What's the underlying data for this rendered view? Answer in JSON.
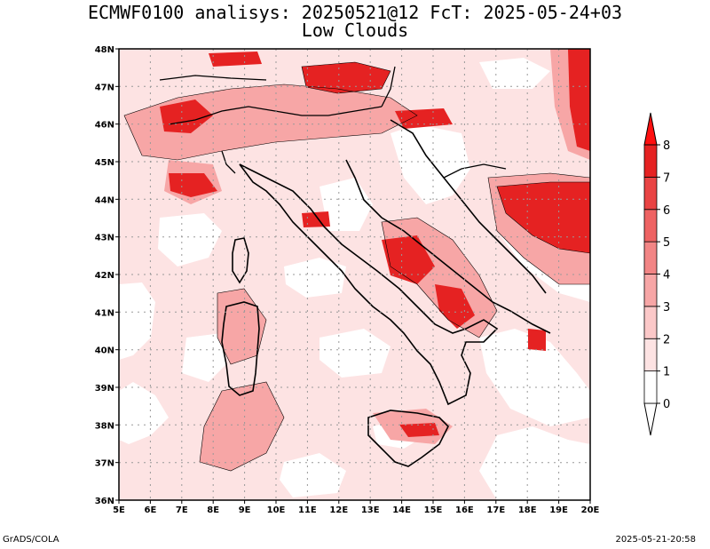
{
  "title": {
    "line1": "ECMWF0100 analisys: 20250521@12 FcT: 2025-05-24+03",
    "line2": "Low Clouds"
  },
  "credits": {
    "left": "GrADS/COLA",
    "right": "2025-05-21-20:58"
  },
  "map": {
    "lon_ticks": [
      "5E",
      "6E",
      "7E",
      "8E",
      "9E",
      "10E",
      "11E",
      "12E",
      "13E",
      "14E",
      "15E",
      "16E",
      "17E",
      "18E",
      "19E",
      "20E"
    ],
    "lat_ticks": [
      "48N",
      "47N",
      "46N",
      "45N",
      "44N",
      "43N",
      "42N",
      "41N",
      "40N",
      "39N",
      "38N",
      "37N",
      "36N"
    ],
    "lon_range": [
      5,
      20
    ],
    "lat_range": [
      36,
      48
    ],
    "grid": true,
    "grid_style": "dotted"
  },
  "colorbar": {
    "labels": [
      "0",
      "1",
      "2",
      "3",
      "4",
      "5",
      "6",
      "7",
      "8"
    ],
    "colors": [
      "#ffffff",
      "#fde3e3",
      "#fbc8c8",
      "#f7a6a6",
      "#f28585",
      "#ee6363",
      "#e94444",
      "#e52222",
      "#ff1010"
    ],
    "placement": "right"
  }
}
